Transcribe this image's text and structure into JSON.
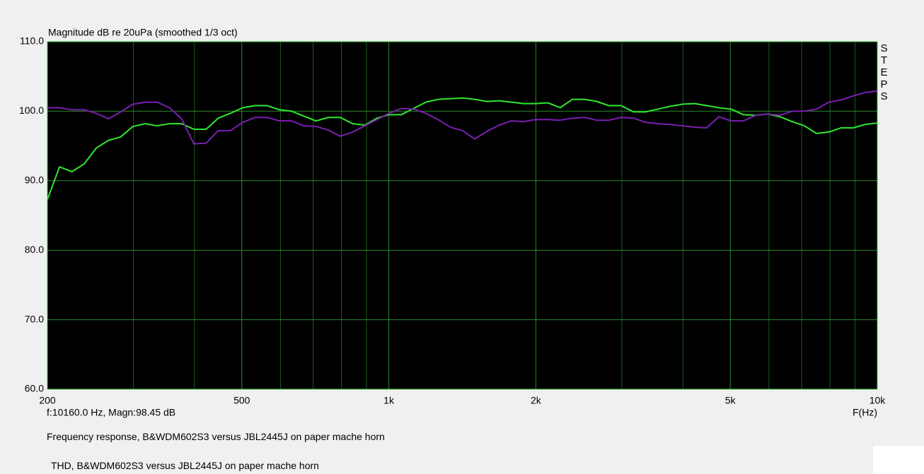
{
  "chart_data": {
    "type": "line",
    "title": "Magnitude dB re 20uPa (smoothed  1/3 oct)",
    "side_label": "STEPS",
    "cursor_readout": "f:10160.0 Hz, Magn:98.45 dB",
    "x_label": "F(Hz)",
    "log_x": true,
    "grid": true,
    "x": [
      200,
      211.8,
      224.4,
      237.7,
      251.8,
      266.7,
      282.5,
      299.2,
      316.9,
      335.7,
      355.6,
      376.6,
      398.9,
      422.6,
      447.6,
      474.1,
      502.2,
      531.9,
      563.5,
      596.8,
      632.2,
      669.6,
      709.3,
      751.3,
      795.8,
      843,
      892.9,
      945.8,
      1001.9,
      1061,
      1124,
      1191,
      1261,
      1336,
      1415,
      1499,
      1588,
      1682,
      1781,
      1887,
      1999,
      2117,
      2243,
      2375,
      2516,
      2665,
      2823,
      2990,
      3168,
      3355,
      3554,
      3765,
      3988,
      4224,
      4474,
      4739,
      5020,
      5317,
      5632,
      5966,
      6319,
      6694,
      7090,
      7510,
      7955,
      8426,
      8926,
      9454,
      10000
    ],
    "series": [
      {
        "name": "Frequency response, B&WDM602S3 versus JBL2445J on paper mache horn",
        "color": "#2ee82e",
        "values": [
          87.3,
          92.0,
          91.3,
          92.4,
          94.7,
          95.8,
          96.3,
          97.8,
          98.2,
          97.9,
          98.2,
          98.2,
          97.4,
          97.4,
          99.0,
          99.7,
          100.5,
          100.8,
          100.8,
          100.2,
          100.0,
          99.3,
          98.6,
          99.1,
          99.1,
          98.2,
          98.0,
          99.0,
          99.5,
          99.5,
          100.4,
          101.3,
          101.7,
          101.8,
          101.9,
          101.7,
          101.4,
          101.5,
          101.3,
          101.1,
          101.1,
          101.2,
          100.5,
          101.7,
          101.7,
          101.4,
          100.8,
          100.8,
          99.9,
          99.9,
          100.3,
          100.7,
          101.0,
          101.1,
          100.8,
          100.5,
          100.3,
          99.5,
          99.4,
          99.6,
          99.2,
          98.5,
          97.9,
          96.8,
          97.0,
          97.6,
          97.6,
          98.1,
          98.3
        ]
      },
      {
        "name": "THD, B&WDM602S3 versus JBL2445J on paper mache horn",
        "color": "#7a1fb0",
        "values": [
          100.5,
          100.5,
          100.2,
          100.2,
          99.7,
          98.9,
          99.9,
          101.0,
          101.3,
          101.3,
          100.5,
          98.9,
          95.3,
          95.4,
          97.2,
          97.2,
          98.4,
          99.1,
          99.1,
          98.6,
          98.6,
          97.9,
          97.8,
          97.3,
          96.4,
          97.0,
          97.9,
          98.8,
          99.7,
          100.4,
          100.3,
          99.7,
          98.8,
          97.7,
          97.2,
          96.0,
          97.1,
          98.0,
          98.6,
          98.5,
          98.8,
          98.8,
          98.7,
          99.0,
          99.1,
          98.7,
          98.7,
          99.1,
          99.0,
          98.4,
          98.2,
          98.1,
          97.9,
          97.7,
          97.6,
          99.2,
          98.6,
          98.6,
          99.4,
          99.6,
          99.4,
          100.0,
          100.0,
          100.3,
          101.3,
          101.6,
          102.2,
          102.7,
          102.9
        ]
      }
    ],
    "xlim": [
      200,
      10000
    ],
    "xticks": [
      200,
      500,
      {
        "value": 1000,
        "label": "1k"
      },
      {
        "value": 2000,
        "label": "2k"
      },
      {
        "value": 5000,
        "label": "5k"
      },
      {
        "value": 10000,
        "label": "10k"
      }
    ],
    "x_minor_gridlines": [
      300,
      400,
      600,
      700,
      800,
      900,
      3000,
      4000,
      6000,
      7000,
      8000,
      9000
    ],
    "ylim": [
      60,
      110
    ],
    "yticks": [
      {
        "value": 60,
        "label": "60.0"
      },
      {
        "value": 70,
        "label": "70.0"
      },
      {
        "value": 80,
        "label": "80.0"
      },
      {
        "value": 90,
        "label": "90.0"
      },
      {
        "value": 100,
        "label": "100.0"
      },
      {
        "value": 110,
        "label": "110.0"
      }
    ]
  }
}
